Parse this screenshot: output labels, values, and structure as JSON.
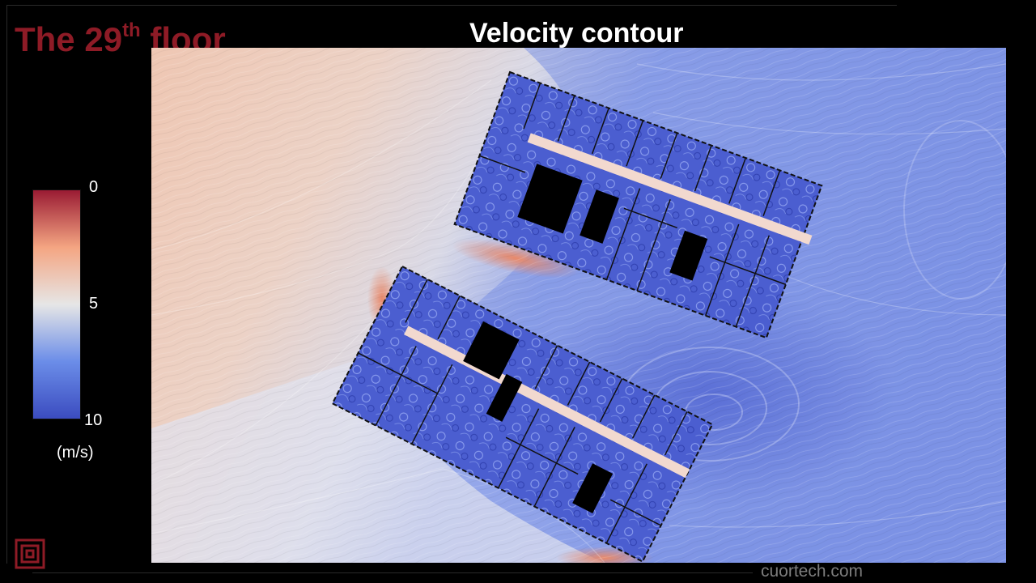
{
  "slide": {
    "title_prefix": "The 29",
    "title_sup": "th",
    "title_suffix": " floor",
    "title_color": "#8e1b26"
  },
  "plot": {
    "title": "Velocity contour"
  },
  "legend": {
    "ticks": [
      "0",
      "5",
      "10"
    ],
    "unit": "(m/s)",
    "colors": [
      "#9a1b33",
      "#f4a582",
      "#e6e6e6",
      "#6b8de8",
      "#3b4cc0"
    ]
  },
  "footer": {
    "watermark": "cuortech.com"
  }
}
